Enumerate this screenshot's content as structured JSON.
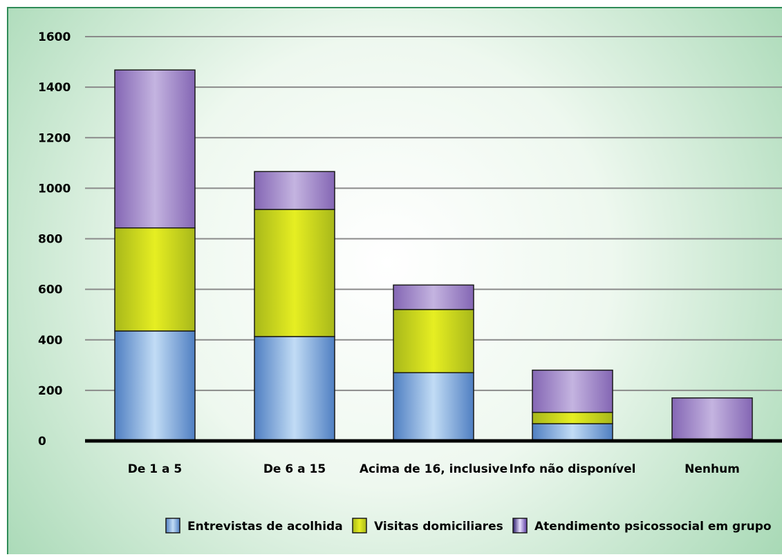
{
  "chart_data": {
    "type": "bar",
    "stacked": true,
    "categories": [
      "De 1 a 5",
      "De 6 a 15",
      "Acima de 16, inclusive",
      "Info não disponível",
      "Nenhum"
    ],
    "series": [
      {
        "name": "Entrevistas de acolhida",
        "values": [
          435,
          413,
          270,
          68,
          8
        ],
        "color": "#7ea6d9"
      },
      {
        "name": "Visitas domiciliares",
        "values": [
          408,
          503,
          250,
          45,
          0
        ],
        "color": "#d4dc22"
      },
      {
        "name": "Atendimento psicossocial em grupo",
        "values": [
          625,
          150,
          97,
          167,
          162
        ],
        "color": "#a58dc8"
      }
    ],
    "title": "",
    "xlabel": "",
    "ylabel": "",
    "ylim": [
      0,
      1600
    ],
    "yticks": [
      "0",
      "200",
      "400",
      "600",
      "800",
      "1000",
      "1200",
      "1400",
      "1600"
    ],
    "grid": true,
    "legend_position": "bottom"
  },
  "theme": {
    "frame_border": "#2e8b57",
    "background_center": "#ffffff",
    "background_edge": "#9fd3b0",
    "axis_color": "#000000",
    "grid_color": "#8a8a8a"
  }
}
